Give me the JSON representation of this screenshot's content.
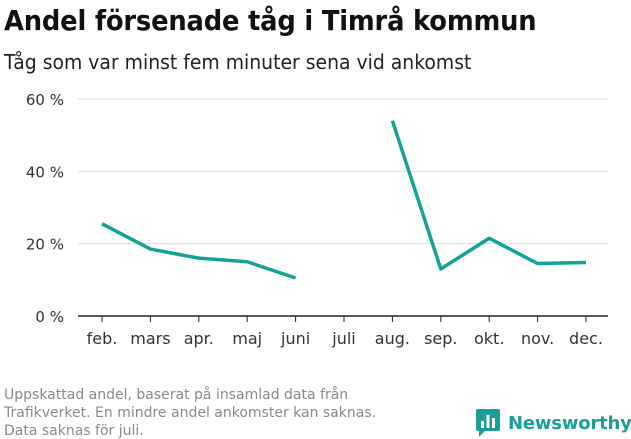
{
  "title": "Andel försenade tåg i Timrå kommun",
  "subtitle": "Tåg som var minst fem minuter sena vid ankomst",
  "footnote": [
    "Uppskattad andel, baserat på insamlad data från",
    "Trafikverket. En mindre andel ankomster kan saknas.",
    "Data saknas för juli."
  ],
  "brand": {
    "name": "Newsworthy",
    "icon": "newsworthy-logo-icon",
    "color": "#1b9e98"
  },
  "chart_data": {
    "type": "line",
    "title": "Andel försenade tåg i Timrå kommun",
    "subtitle": "Tåg som var minst fem minuter sena vid ankomst",
    "categories": [
      "feb.",
      "mars",
      "apr.",
      "maj",
      "juni",
      "juli",
      "aug.",
      "sep.",
      "okt.",
      "nov.",
      "dec."
    ],
    "series": [
      {
        "values": [
          25.5,
          18.5,
          16,
          15,
          10.5,
          null,
          54,
          13,
          21.5,
          14.5,
          14.8
        ],
        "color": "#13a397"
      }
    ],
    "yticks": [
      0,
      20,
      40,
      60
    ],
    "ytick_labels": [
      "0 %",
      "20 %",
      "40 %",
      "60 %"
    ],
    "ylim": [
      0,
      60
    ],
    "xlabel": "",
    "ylabel": "",
    "grid": true
  }
}
